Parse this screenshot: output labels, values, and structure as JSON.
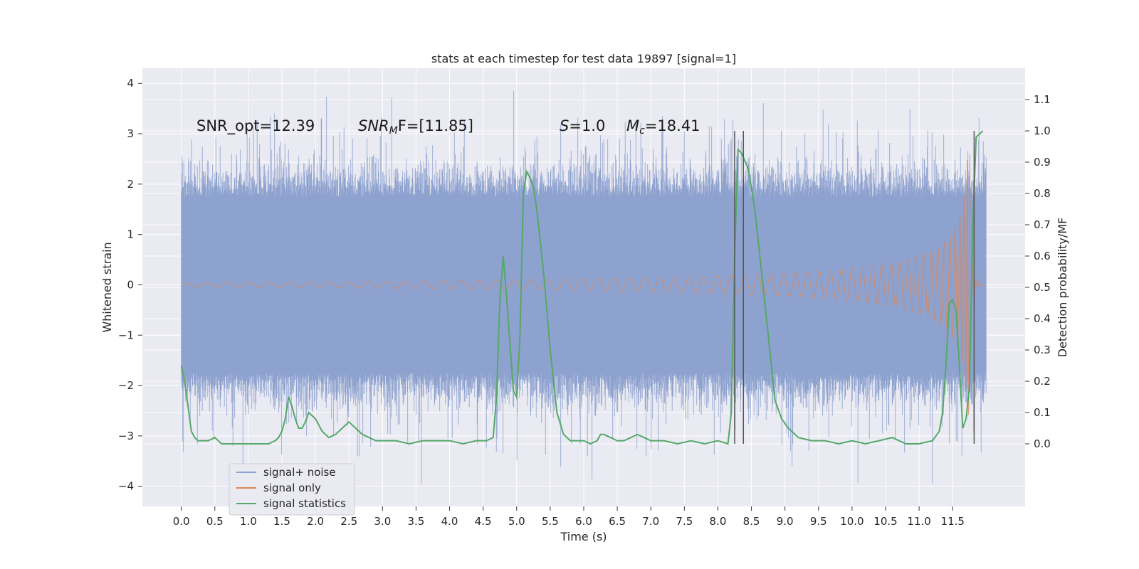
{
  "chart_data": {
    "type": "line",
    "title": "stats at each timestep for test data 19897 [signal=1]",
    "xlabel": "Time (s)",
    "ylabel": "Whitened strain",
    "ylabel_right": "Detection probability/MF",
    "xlim": [
      -0.58,
      12.58
    ],
    "ylim": [
      -4.4,
      4.3
    ],
    "ylim_right": [
      -0.2,
      1.2
    ],
    "x_ticks": [
      "0.0",
      "0.5",
      "1.0",
      "1.5",
      "2.0",
      "2.5",
      "3.0",
      "3.5",
      "4.0",
      "4.5",
      "5.0",
      "5.5",
      "6.0",
      "6.5",
      "7.0",
      "7.5",
      "8.0",
      "8.5",
      "9.0",
      "9.5",
      "10.0",
      "10.5",
      "11.0",
      "11.5"
    ],
    "y_ticks": [
      "4",
      "3",
      "2",
      "1",
      "0",
      "−1",
      "−2",
      "−3",
      "−4"
    ],
    "y_ticks_right": [
      "1.1",
      "1.0",
      "0.9",
      "0.8",
      "0.7",
      "0.6",
      "0.5",
      "0.4",
      "0.3",
      "0.2",
      "0.1",
      "0.0"
    ],
    "annotations": {
      "snr_opt": "SNR_opt=12.39",
      "snr_mf_base": "SNR",
      "snr_mf_sub": "M",
      "snr_mf_rest": "F=[11.85]",
      "s_italic": "S",
      "s_rest": "=1.0",
      "mc_italic": "M",
      "mc_sub": "c",
      "mc_rest": "=18.41"
    },
    "colors": {
      "background": "#eaeaf2",
      "grid": "#ffffff",
      "signal_noise": "#8ea2cf",
      "signal_only": "#dd8452",
      "signal_statistics": "#55a868",
      "vlines": "#555555"
    },
    "vertical_lines_x": [
      8.25,
      8.38,
      11.82
    ],
    "series": [
      {
        "name": "signal+ noise",
        "style": "dense noise trace, amplitude ~±1.8 typical, peaks to ~±3.9",
        "x_range": [
          0.0,
          12.0
        ]
      },
      {
        "name": "signal only",
        "style": "chirp, amplitude grows toward merger",
        "x_range": [
          0.0,
          12.0
        ],
        "peak_x": 11.7,
        "peak_y": 2.6
      },
      {
        "name": "signal statistics",
        "axis": "right",
        "points": [
          [
            0.0,
            0.25
          ],
          [
            0.05,
            0.2
          ],
          [
            0.1,
            0.12
          ],
          [
            0.15,
            0.04
          ],
          [
            0.2,
            0.02
          ],
          [
            0.25,
            0.01
          ],
          [
            0.3,
            0.01
          ],
          [
            0.35,
            0.01
          ],
          [
            0.4,
            0.01
          ],
          [
            0.5,
            0.02
          ],
          [
            0.6,
            0.0
          ],
          [
            0.7,
            0.0
          ],
          [
            0.8,
            0.0
          ],
          [
            0.9,
            0.0
          ],
          [
            1.0,
            0.0
          ],
          [
            1.1,
            0.0
          ],
          [
            1.2,
            0.0
          ],
          [
            1.3,
            0.0
          ],
          [
            1.4,
            0.01
          ],
          [
            1.45,
            0.02
          ],
          [
            1.5,
            0.04
          ],
          [
            1.55,
            0.08
          ],
          [
            1.6,
            0.15
          ],
          [
            1.65,
            0.12
          ],
          [
            1.7,
            0.08
          ],
          [
            1.75,
            0.05
          ],
          [
            1.8,
            0.05
          ],
          [
            1.85,
            0.07
          ],
          [
            1.9,
            0.1
          ],
          [
            2.0,
            0.08
          ],
          [
            2.1,
            0.04
          ],
          [
            2.2,
            0.02
          ],
          [
            2.3,
            0.03
          ],
          [
            2.4,
            0.05
          ],
          [
            2.5,
            0.07
          ],
          [
            2.6,
            0.05
          ],
          [
            2.7,
            0.03
          ],
          [
            2.8,
            0.02
          ],
          [
            2.9,
            0.01
          ],
          [
            3.0,
            0.01
          ],
          [
            3.2,
            0.01
          ],
          [
            3.4,
            0.0
          ],
          [
            3.6,
            0.01
          ],
          [
            3.8,
            0.01
          ],
          [
            4.0,
            0.01
          ],
          [
            4.2,
            0.0
          ],
          [
            4.4,
            0.01
          ],
          [
            4.55,
            0.01
          ],
          [
            4.65,
            0.02
          ],
          [
            4.7,
            0.15
          ],
          [
            4.75,
            0.46
          ],
          [
            4.8,
            0.6
          ],
          [
            4.85,
            0.47
          ],
          [
            4.95,
            0.17
          ],
          [
            5.0,
            0.15
          ],
          [
            5.05,
            0.35
          ],
          [
            5.1,
            0.8
          ],
          [
            5.15,
            0.87
          ],
          [
            5.2,
            0.85
          ],
          [
            5.25,
            0.82
          ],
          [
            5.3,
            0.75
          ],
          [
            5.4,
            0.55
          ],
          [
            5.5,
            0.3
          ],
          [
            5.55,
            0.2
          ],
          [
            5.6,
            0.1
          ],
          [
            5.7,
            0.03
          ],
          [
            5.8,
            0.01
          ],
          [
            5.9,
            0.01
          ],
          [
            6.0,
            0.01
          ],
          [
            6.1,
            0.0
          ],
          [
            6.2,
            0.01
          ],
          [
            6.25,
            0.03
          ],
          [
            6.3,
            0.03
          ],
          [
            6.4,
            0.02
          ],
          [
            6.5,
            0.01
          ],
          [
            6.6,
            0.01
          ],
          [
            6.7,
            0.02
          ],
          [
            6.8,
            0.03
          ],
          [
            6.9,
            0.02
          ],
          [
            7.0,
            0.01
          ],
          [
            7.2,
            0.01
          ],
          [
            7.4,
            0.0
          ],
          [
            7.6,
            0.01
          ],
          [
            7.8,
            0.0
          ],
          [
            8.0,
            0.01
          ],
          [
            8.15,
            0.0
          ],
          [
            8.2,
            0.1
          ],
          [
            8.25,
            0.6
          ],
          [
            8.3,
            0.94
          ],
          [
            8.35,
            0.93
          ],
          [
            8.45,
            0.88
          ],
          [
            8.55,
            0.75
          ],
          [
            8.65,
            0.55
          ],
          [
            8.75,
            0.35
          ],
          [
            8.85,
            0.14
          ],
          [
            8.95,
            0.08
          ],
          [
            9.05,
            0.05
          ],
          [
            9.2,
            0.02
          ],
          [
            9.4,
            0.01
          ],
          [
            9.6,
            0.01
          ],
          [
            9.8,
            0.0
          ],
          [
            10.0,
            0.01
          ],
          [
            10.2,
            0.0
          ],
          [
            10.4,
            0.01
          ],
          [
            10.6,
            0.02
          ],
          [
            10.8,
            0.0
          ],
          [
            11.0,
            0.0
          ],
          [
            11.2,
            0.01
          ],
          [
            11.3,
            0.04
          ],
          [
            11.35,
            0.1
          ],
          [
            11.4,
            0.25
          ],
          [
            11.45,
            0.45
          ],
          [
            11.5,
            0.46
          ],
          [
            11.55,
            0.43
          ],
          [
            11.6,
            0.25
          ],
          [
            11.65,
            0.05
          ],
          [
            11.7,
            0.08
          ],
          [
            11.75,
            0.18
          ],
          [
            11.8,
            0.7
          ],
          [
            11.85,
            0.98
          ],
          [
            11.95,
            1.0
          ]
        ]
      }
    ],
    "legend": {
      "placement": "lower-left",
      "entries": [
        "signal+ noise",
        "signal only",
        "signal statistics"
      ]
    }
  }
}
